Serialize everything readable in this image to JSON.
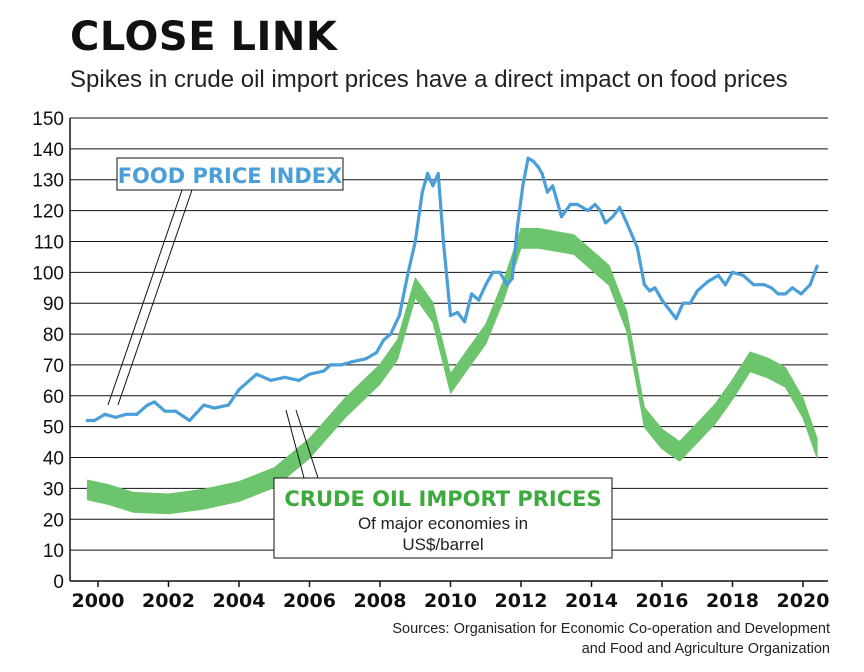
{
  "header": {
    "title": "CLOSE LINK",
    "subtitle": "Spikes in crude oil import prices have a direct impact on food prices"
  },
  "source": {
    "line1": "Sources: Organisation for Economic Co-operation and Development",
    "line2": "and Food and Agriculture Organization"
  },
  "colors": {
    "food": "#4a9fd8",
    "oil": "#6cc56c",
    "oil_label": "#3daa3d",
    "grid": "#111111"
  },
  "chart_data": {
    "type": "line",
    "ylim": [
      0,
      150
    ],
    "xlim": [
      1999.6,
      2020.7
    ],
    "y_ticks": [
      0,
      10,
      20,
      30,
      40,
      50,
      60,
      70,
      80,
      90,
      100,
      110,
      120,
      130,
      140,
      150
    ],
    "x_ticks": [
      2000,
      2002,
      2004,
      2006,
      2008,
      2010,
      2012,
      2014,
      2016,
      2018,
      2020
    ],
    "grid": true,
    "series": [
      {
        "name": "FOOD PRICE INDEX",
        "kind": "line",
        "x": [
          1999.7,
          1999.9,
          2000.2,
          2000.5,
          2000.8,
          2001.1,
          2001.4,
          2001.6,
          2001.9,
          2002.2,
          2002.6,
          2003.0,
          2003.3,
          2003.7,
          2004.0,
          2004.5,
          2004.9,
          2005.3,
          2005.7,
          2006.0,
          2006.4,
          2006.6,
          2006.9,
          2007.2,
          2007.6,
          2007.9,
          2008.1,
          2008.3,
          2008.55,
          2008.8,
          2009.0,
          2009.2,
          2009.35,
          2009.5,
          2009.65,
          2009.8,
          2010.0,
          2010.2,
          2010.4,
          2010.6,
          2010.8,
          2011.0,
          2011.2,
          2011.4,
          2011.6,
          2011.75,
          2011.9,
          2012.05,
          2012.2,
          2012.35,
          2012.5,
          2012.6,
          2012.75,
          2012.9,
          2013.0,
          2013.15,
          2013.4,
          2013.6,
          2013.9,
          2014.1,
          2014.25,
          2014.4,
          2014.6,
          2014.8,
          2015.0,
          2015.3,
          2015.5,
          2015.65,
          2015.8,
          2016.0,
          2016.2,
          2016.4,
          2016.6,
          2016.8,
          2017.0,
          2017.3,
          2017.6,
          2017.8,
          2018.0,
          2018.3,
          2018.6,
          2018.9,
          2019.1,
          2019.3,
          2019.5,
          2019.7,
          2019.95,
          2020.2,
          2020.4
        ],
        "values": [
          52,
          52,
          54,
          53,
          54,
          54,
          57,
          58,
          55,
          55,
          52,
          57,
          56,
          57,
          62,
          67,
          65,
          66,
          65,
          67,
          68,
          70,
          70,
          71,
          72,
          74,
          78,
          80,
          86,
          100,
          110,
          126,
          132,
          128,
          132,
          110,
          86,
          87,
          84,
          93,
          91,
          96,
          100,
          100,
          96,
          98,
          115,
          128,
          137,
          136,
          134,
          132,
          126,
          128,
          124,
          118,
          122,
          122,
          120,
          122,
          120,
          116,
          118,
          121,
          116,
          108,
          96,
          94,
          95,
          91,
          88,
          85,
          90,
          90,
          94,
          97,
          99,
          96,
          100,
          99,
          96,
          96,
          95,
          93,
          93,
          95,
          93,
          96,
          102
        ]
      },
      {
        "name": "CRUDE OIL IMPORT PRICES",
        "kind": "band",
        "x": [
          1999.7,
          2000.3,
          2001.0,
          2002.0,
          2003.0,
          2004.0,
          2005.0,
          2006.0,
          2007.0,
          2008.0,
          2008.5,
          2009.0,
          2009.5,
          2010.0,
          2010.5,
          2011.0,
          2011.5,
          2012.0,
          2012.5,
          2013.0,
          2013.5,
          2014.0,
          2014.5,
          2015.0,
          2015.5,
          2016.0,
          2016.5,
          2017.0,
          2017.5,
          2018.0,
          2018.5,
          2019.0,
          2019.5,
          2020.0,
          2020.4
        ],
        "values": [
          29.5,
          28,
          25.5,
          25,
          26.5,
          29,
          33.5,
          43,
          56,
          67,
          75,
          95,
          87,
          64,
          72,
          80,
          94,
          111,
          111,
          110,
          109,
          104,
          99,
          84,
          53,
          46,
          42,
          48,
          54,
          62,
          71,
          69,
          66,
          56,
          43
        ]
      }
    ],
    "annotations": {
      "food_label": "FOOD PRICE INDEX",
      "oil_label": "CRUDE OIL IMPORT PRICES",
      "oil_sub1": "Of major economies in",
      "oil_sub2": "US$/barrel"
    }
  }
}
